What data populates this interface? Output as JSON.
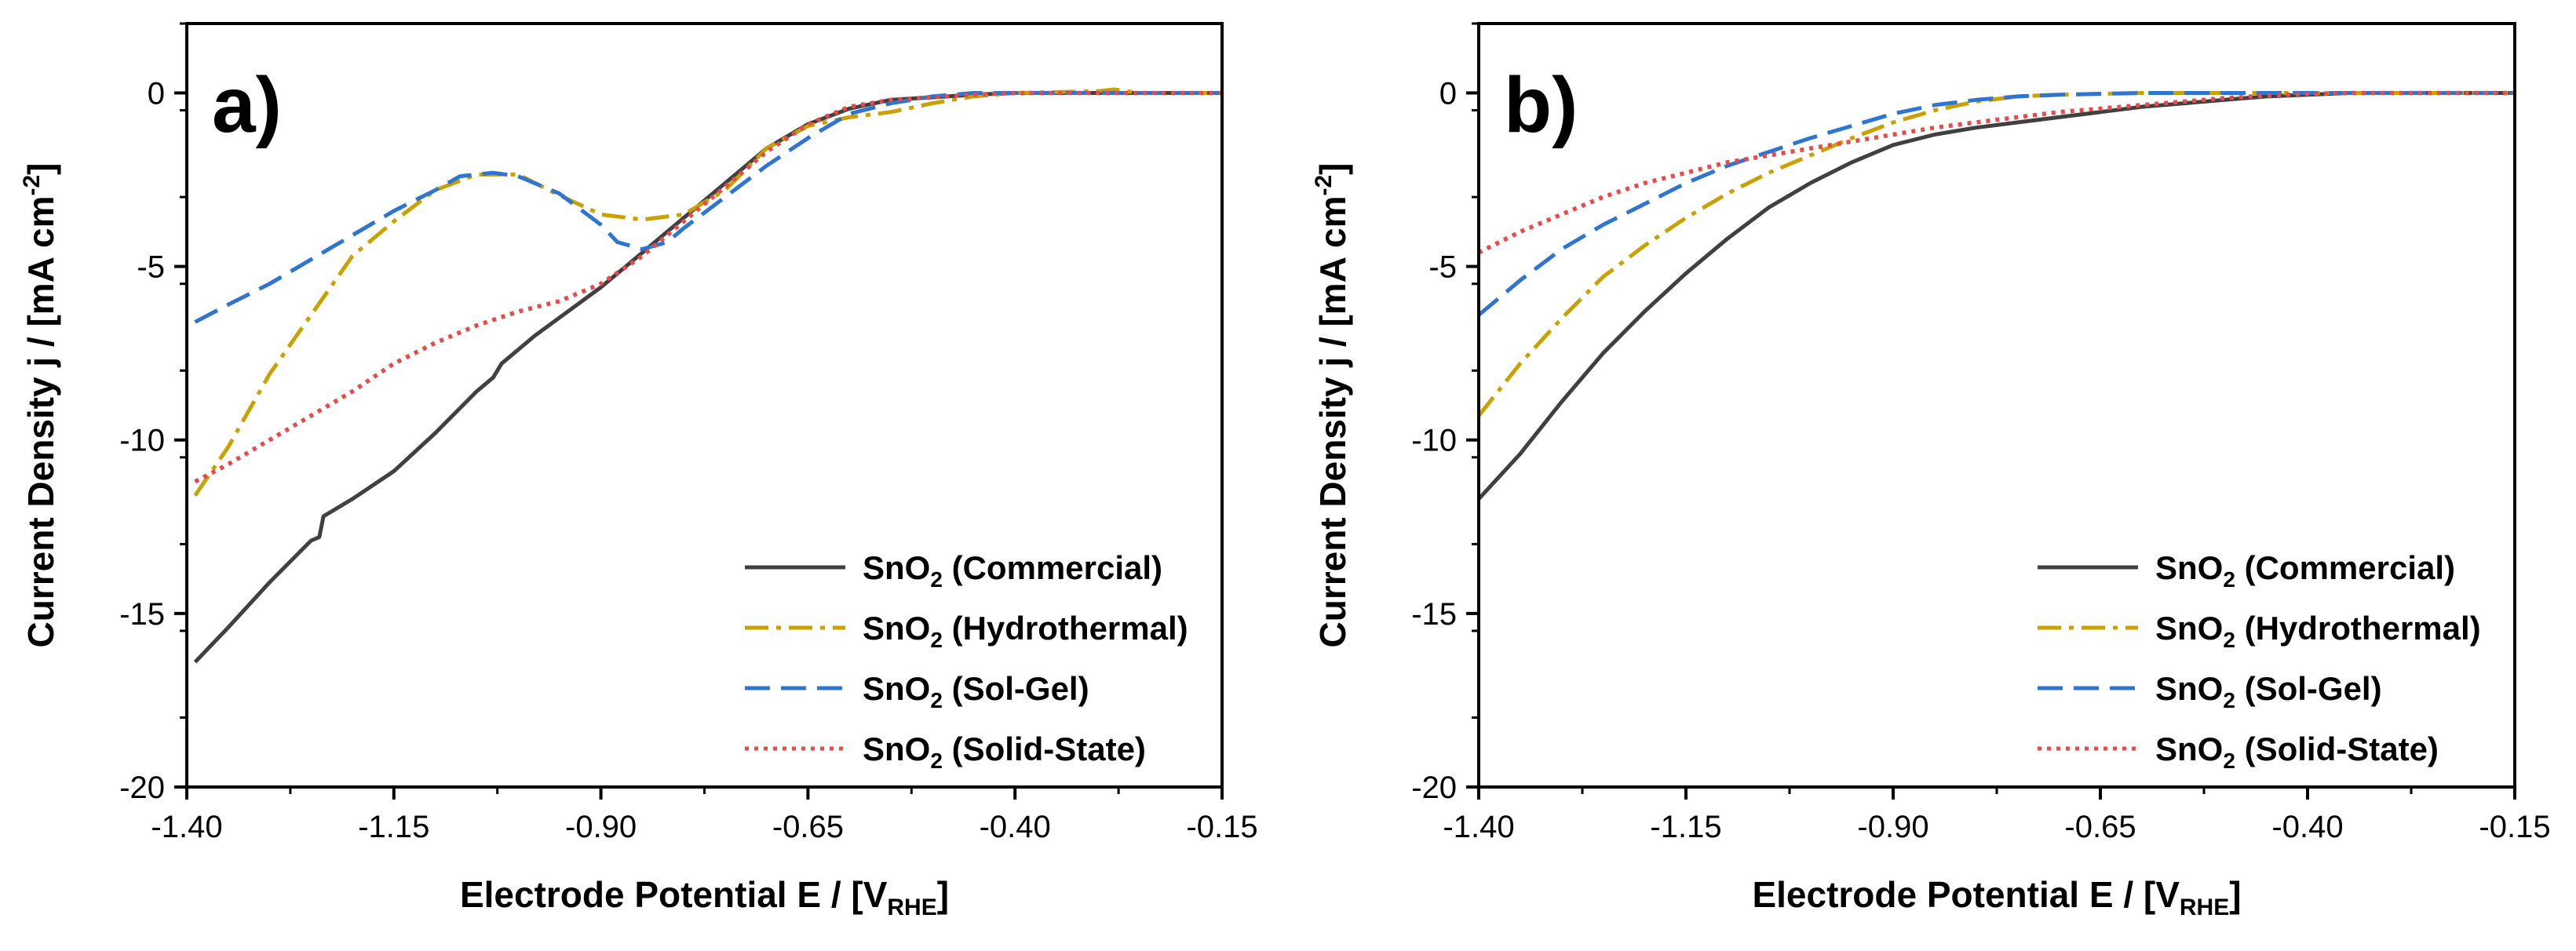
{
  "chart_data": [
    {
      "type": "line",
      "panel_label": "a)",
      "xlabel": "Electrode Potential E / [V",
      "xlabel_sub": "RHE",
      "xlabel_end": "]",
      "ylabel": "Current Density j / [mA cm",
      "ylabel_sup": "-2",
      "ylabel_end": "]",
      "xlim": [
        -1.4,
        -0.15
      ],
      "ylim": [
        -20,
        2
      ],
      "xticks": [
        -1.4,
        -1.15,
        -0.9,
        -0.65,
        -0.4,
        -0.15
      ],
      "xtick_labels": [
        "-1.40",
        "-1.15",
        "-0.90",
        "-0.65",
        "-0.40",
        "-0.15"
      ],
      "yticks": [
        0,
        -5,
        -10,
        -15,
        -20
      ],
      "ytick_labels": [
        "0",
        "-5",
        "-10",
        "-15",
        "-20"
      ],
      "legend_position": "bottom-right",
      "series": [
        {
          "name": "SnO",
          "name_sub": "2",
          "name_suffix": " (Commercial)",
          "color": "#404040",
          "style": "solid",
          "points": [
            [
              -1.39,
              -16.4
            ],
            [
              -1.35,
              -15.4
            ],
            [
              -1.3,
              -14.1
            ],
            [
              -1.25,
              -12.9
            ],
            [
              -1.24,
              -12.8
            ],
            [
              -1.235,
              -12.2
            ],
            [
              -1.2,
              -11.7
            ],
            [
              -1.15,
              -10.9
            ],
            [
              -1.1,
              -9.8
            ],
            [
              -1.05,
              -8.6
            ],
            [
              -1.03,
              -8.2
            ],
            [
              -1.02,
              -7.8
            ],
            [
              -0.98,
              -7.0
            ],
            [
              -0.9,
              -5.6
            ],
            [
              -0.85,
              -4.6
            ],
            [
              -0.8,
              -3.6
            ],
            [
              -0.75,
              -2.6
            ],
            [
              -0.7,
              -1.6
            ],
            [
              -0.65,
              -0.9
            ],
            [
              -0.6,
              -0.45
            ],
            [
              -0.55,
              -0.2
            ],
            [
              -0.45,
              -0.05
            ],
            [
              -0.4,
              0
            ],
            [
              -0.15,
              0
            ]
          ]
        },
        {
          "name": "SnO",
          "name_sub": "2",
          "name_suffix": " (Hydrothermal)",
          "color": "#C9A100",
          "style": "dashdot",
          "points": [
            [
              -1.39,
              -11.6
            ],
            [
              -1.35,
              -10.2
            ],
            [
              -1.3,
              -8.1
            ],
            [
              -1.25,
              -6.4
            ],
            [
              -1.2,
              -4.7
            ],
            [
              -1.15,
              -3.7
            ],
            [
              -1.1,
              -2.8
            ],
            [
              -1.05,
              -2.35
            ],
            [
              -1.0,
              -2.35
            ],
            [
              -0.95,
              -2.95
            ],
            [
              -0.9,
              -3.5
            ],
            [
              -0.85,
              -3.65
            ],
            [
              -0.8,
              -3.5
            ],
            [
              -0.75,
              -2.8
            ],
            [
              -0.7,
              -1.6
            ],
            [
              -0.65,
              -0.95
            ],
            [
              -0.6,
              -0.7
            ],
            [
              -0.55,
              -0.55
            ],
            [
              -0.5,
              -0.3
            ],
            [
              -0.45,
              -0.1
            ],
            [
              -0.4,
              0
            ],
            [
              -0.3,
              0.05
            ],
            [
              -0.28,
              0.1
            ],
            [
              -0.25,
              0
            ],
            [
              -0.15,
              0
            ]
          ]
        },
        {
          "name": "SnO",
          "name_sub": "2",
          "name_suffix": " (Sol-Gel)",
          "color": "#2E75D0",
          "style": "dashed",
          "points": [
            [
              -1.39,
              -6.6
            ],
            [
              -1.35,
              -6.1
            ],
            [
              -1.3,
              -5.5
            ],
            [
              -1.25,
              -4.8
            ],
            [
              -1.2,
              -4.1
            ],
            [
              -1.15,
              -3.4
            ],
            [
              -1.1,
              -2.8
            ],
            [
              -1.07,
              -2.4
            ],
            [
              -1.03,
              -2.3
            ],
            [
              -1.0,
              -2.4
            ],
            [
              -0.95,
              -2.9
            ],
            [
              -0.9,
              -3.8
            ],
            [
              -0.88,
              -4.3
            ],
            [
              -0.85,
              -4.5
            ],
            [
              -0.82,
              -4.3
            ],
            [
              -0.8,
              -3.9
            ],
            [
              -0.75,
              -3.0
            ],
            [
              -0.7,
              -2.1
            ],
            [
              -0.65,
              -1.3
            ],
            [
              -0.6,
              -0.6
            ],
            [
              -0.55,
              -0.3
            ],
            [
              -0.5,
              -0.1
            ],
            [
              -0.45,
              0
            ],
            [
              -0.15,
              0
            ]
          ]
        },
        {
          "name": "SnO",
          "name_sub": "2",
          "name_suffix": " (Solid-State)",
          "color": "#E84A4A",
          "style": "dotted",
          "points": [
            [
              -1.39,
              -11.2
            ],
            [
              -1.35,
              -10.7
            ],
            [
              -1.3,
              -10.0
            ],
            [
              -1.25,
              -9.3
            ],
            [
              -1.2,
              -8.6
            ],
            [
              -1.15,
              -7.8
            ],
            [
              -1.1,
              -7.2
            ],
            [
              -1.05,
              -6.7
            ],
            [
              -1.0,
              -6.3
            ],
            [
              -0.95,
              -6.0
            ],
            [
              -0.9,
              -5.5
            ],
            [
              -0.85,
              -4.7
            ],
            [
              -0.8,
              -3.7
            ],
            [
              -0.75,
              -2.7
            ],
            [
              -0.7,
              -1.7
            ],
            [
              -0.65,
              -0.9
            ],
            [
              -0.6,
              -0.4
            ],
            [
              -0.55,
              -0.2
            ],
            [
              -0.45,
              -0.05
            ],
            [
              -0.4,
              0
            ],
            [
              -0.15,
              0
            ]
          ]
        }
      ]
    },
    {
      "type": "line",
      "panel_label": "b)",
      "xlabel": "Electrode Potential E / [V",
      "xlabel_sub": "RHE",
      "xlabel_end": "]",
      "ylabel": "Current Density j / [mA cm",
      "ylabel_sup": "-2",
      "ylabel_end": "]",
      "xlim": [
        -1.4,
        -0.15
      ],
      "ylim": [
        -20,
        2
      ],
      "xticks": [
        -1.4,
        -1.15,
        -0.9,
        -0.65,
        -0.4,
        -0.15
      ],
      "xtick_labels": [
        "-1.40",
        "-1.15",
        "-0.90",
        "-0.65",
        "-0.40",
        "-0.15"
      ],
      "yticks": [
        0,
        -5,
        -10,
        -15,
        -20
      ],
      "ytick_labels": [
        "0",
        "-5",
        "-10",
        "-15",
        "-20"
      ],
      "legend_position": "bottom-right",
      "series": [
        {
          "name": "SnO",
          "name_sub": "2",
          "name_suffix": " (Commercial)",
          "color": "#404040",
          "style": "solid",
          "points": [
            [
              -1.4,
              -11.7
            ],
            [
              -1.35,
              -10.4
            ],
            [
              -1.3,
              -8.9
            ],
            [
              -1.25,
              -7.5
            ],
            [
              -1.2,
              -6.3
            ],
            [
              -1.15,
              -5.2
            ],
            [
              -1.1,
              -4.2
            ],
            [
              -1.05,
              -3.3
            ],
            [
              -1.0,
              -2.6
            ],
            [
              -0.95,
              -2.0
            ],
            [
              -0.9,
              -1.5
            ],
            [
              -0.85,
              -1.2
            ],
            [
              -0.8,
              -1.0
            ],
            [
              -0.75,
              -0.85
            ],
            [
              -0.7,
              -0.7
            ],
            [
              -0.65,
              -0.55
            ],
            [
              -0.6,
              -0.4
            ],
            [
              -0.55,
              -0.3
            ],
            [
              -0.5,
              -0.2
            ],
            [
              -0.45,
              -0.1
            ],
            [
              -0.4,
              -0.05
            ],
            [
              -0.35,
              0
            ],
            [
              -0.15,
              0
            ]
          ]
        },
        {
          "name": "SnO",
          "name_sub": "2",
          "name_suffix": " (Hydrothermal)",
          "color": "#C9A100",
          "style": "dashdot",
          "points": [
            [
              -1.4,
              -9.3
            ],
            [
              -1.35,
              -7.8
            ],
            [
              -1.3,
              -6.5
            ],
            [
              -1.25,
              -5.3
            ],
            [
              -1.2,
              -4.4
            ],
            [
              -1.15,
              -3.6
            ],
            [
              -1.1,
              -2.9
            ],
            [
              -1.05,
              -2.3
            ],
            [
              -1.0,
              -1.8
            ],
            [
              -0.95,
              -1.3
            ],
            [
              -0.9,
              -0.85
            ],
            [
              -0.85,
              -0.5
            ],
            [
              -0.8,
              -0.25
            ],
            [
              -0.75,
              -0.1
            ],
            [
              -0.7,
              -0.05
            ],
            [
              -0.6,
              0
            ],
            [
              -0.15,
              0
            ]
          ]
        },
        {
          "name": "SnO",
          "name_sub": "2",
          "name_suffix": " (Sol-Gel)",
          "color": "#2E75D0",
          "style": "dashed",
          "points": [
            [
              -1.4,
              -6.4
            ],
            [
              -1.35,
              -5.4
            ],
            [
              -1.3,
              -4.5
            ],
            [
              -1.25,
              -3.8
            ],
            [
              -1.2,
              -3.2
            ],
            [
              -1.15,
              -2.6
            ],
            [
              -1.1,
              -2.1
            ],
            [
              -1.05,
              -1.7
            ],
            [
              -1.0,
              -1.3
            ],
            [
              -0.95,
              -0.95
            ],
            [
              -0.9,
              -0.6
            ],
            [
              -0.85,
              -0.35
            ],
            [
              -0.8,
              -0.2
            ],
            [
              -0.75,
              -0.1
            ],
            [
              -0.7,
              -0.05
            ],
            [
              -0.6,
              0
            ],
            [
              -0.15,
              0
            ]
          ]
        },
        {
          "name": "SnO",
          "name_sub": "2",
          "name_suffix": " (Solid-State)",
          "color": "#E84A4A",
          "style": "dotted",
          "points": [
            [
              -1.4,
              -4.6
            ],
            [
              -1.35,
              -4.0
            ],
            [
              -1.3,
              -3.5
            ],
            [
              -1.25,
              -3.0
            ],
            [
              -1.2,
              -2.6
            ],
            [
              -1.15,
              -2.3
            ],
            [
              -1.1,
              -2.0
            ],
            [
              -1.05,
              -1.8
            ],
            [
              -1.0,
              -1.6
            ],
            [
              -0.95,
              -1.4
            ],
            [
              -0.9,
              -1.2
            ],
            [
              -0.85,
              -1.0
            ],
            [
              -0.8,
              -0.85
            ],
            [
              -0.75,
              -0.7
            ],
            [
              -0.7,
              -0.55
            ],
            [
              -0.65,
              -0.45
            ],
            [
              -0.6,
              -0.35
            ],
            [
              -0.55,
              -0.25
            ],
            [
              -0.5,
              -0.15
            ],
            [
              -0.45,
              -0.08
            ],
            [
              -0.4,
              -0.03
            ],
            [
              -0.35,
              0
            ],
            [
              -0.15,
              0
            ]
          ]
        }
      ]
    }
  ]
}
